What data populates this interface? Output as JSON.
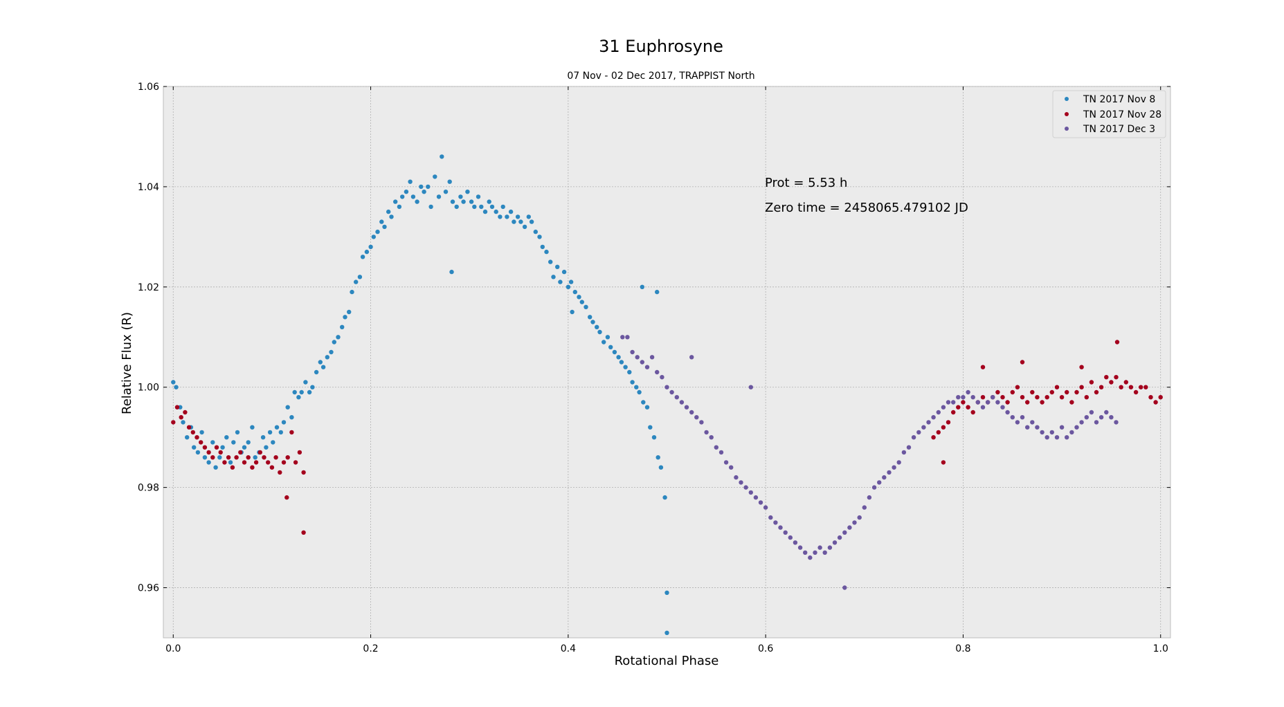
{
  "chart_data": {
    "type": "scatter",
    "title": "31 Euphrosyne",
    "subtitle": "07 Nov - 02 Dec 2017, TRAPPIST North",
    "xlabel": "Rotational Phase",
    "ylabel": "Relative Flux (R)",
    "xlim": [
      -0.01,
      1.01
    ],
    "ylim": [
      0.95,
      1.06
    ],
    "x_ticks": [
      "0.0",
      "0.2",
      "0.4",
      "0.6",
      "0.8",
      "1.0"
    ],
    "y_ticks": [
      "0.96",
      "0.98",
      "1.00",
      "1.02",
      "1.04",
      "1.06"
    ],
    "grid": true,
    "legend_position": "top-right",
    "annotations": [
      "Prot = 5.53 h",
      "Zero time = 2458065.479102 JD"
    ],
    "colors": {
      "background": "#ebebeb",
      "nov8": "#2c87bf",
      "nov28": "#a4001d",
      "dec3": "#6b579f"
    },
    "series": [
      {
        "name": "TN 2017 Nov 8",
        "color": "#2c87bf",
        "x": [
          0.0,
          0.003,
          0.007,
          0.01,
          0.014,
          0.018,
          0.021,
          0.025,
          0.029,
          0.032,
          0.036,
          0.04,
          0.043,
          0.047,
          0.05,
          0.054,
          0.058,
          0.061,
          0.065,
          0.069,
          0.072,
          0.076,
          0.08,
          0.083,
          0.087,
          0.091,
          0.094,
          0.098,
          0.101,
          0.105,
          0.109,
          0.112,
          0.116,
          0.12,
          0.123,
          0.127,
          0.13,
          0.134,
          0.138,
          0.141,
          0.145,
          0.149,
          0.152,
          0.156,
          0.16,
          0.163,
          0.167,
          0.171,
          0.174,
          0.178,
          0.181,
          0.185,
          0.189,
          0.192,
          0.196,
          0.2,
          0.203,
          0.207,
          0.211,
          0.214,
          0.218,
          0.221,
          0.225,
          0.229,
          0.232,
          0.236,
          0.24,
          0.243,
          0.247,
          0.251,
          0.254,
          0.258,
          0.261,
          0.265,
          0.269,
          0.272,
          0.276,
          0.28,
          0.283,
          0.287,
          0.291,
          0.294,
          0.298,
          0.302,
          0.305,
          0.309,
          0.312,
          0.316,
          0.32,
          0.323,
          0.327,
          0.331,
          0.334,
          0.338,
          0.342,
          0.345,
          0.349,
          0.352,
          0.356,
          0.36,
          0.363,
          0.367,
          0.371,
          0.374,
          0.378,
          0.382,
          0.385,
          0.389,
          0.392,
          0.396,
          0.4,
          0.403,
          0.407,
          0.411,
          0.414,
          0.418,
          0.422,
          0.425,
          0.429,
          0.432,
          0.436,
          0.44,
          0.443,
          0.447,
          0.451,
          0.454,
          0.458,
          0.462,
          0.465,
          0.469,
          0.472,
          0.476,
          0.48,
          0.483,
          0.487,
          0.491,
          0.494,
          0.498,
          0.5,
          0.5,
          0.282,
          0.475,
          0.49,
          0.404
        ],
        "y": [
          1.001,
          1.0,
          0.996,
          0.993,
          0.99,
          0.992,
          0.988,
          0.987,
          0.991,
          0.986,
          0.985,
          0.989,
          0.984,
          0.986,
          0.988,
          0.99,
          0.985,
          0.989,
          0.991,
          0.987,
          0.988,
          0.989,
          0.992,
          0.986,
          0.987,
          0.99,
          0.988,
          0.991,
          0.989,
          0.992,
          0.991,
          0.993,
          0.996,
          0.994,
          0.999,
          0.998,
          0.999,
          1.001,
          0.999,
          1.0,
          1.003,
          1.005,
          1.004,
          1.006,
          1.007,
          1.009,
          1.01,
          1.012,
          1.014,
          1.015,
          1.019,
          1.021,
          1.022,
          1.026,
          1.027,
          1.028,
          1.03,
          1.031,
          1.033,
          1.032,
          1.035,
          1.034,
          1.037,
          1.036,
          1.038,
          1.039,
          1.041,
          1.038,
          1.037,
          1.04,
          1.039,
          1.04,
          1.036,
          1.042,
          1.038,
          1.046,
          1.039,
          1.041,
          1.037,
          1.036,
          1.038,
          1.037,
          1.039,
          1.037,
          1.036,
          1.038,
          1.036,
          1.035,
          1.037,
          1.036,
          1.035,
          1.034,
          1.036,
          1.034,
          1.035,
          1.033,
          1.034,
          1.033,
          1.032,
          1.034,
          1.033,
          1.031,
          1.03,
          1.028,
          1.027,
          1.025,
          1.022,
          1.024,
          1.021,
          1.023,
          1.02,
          1.021,
          1.019,
          1.018,
          1.017,
          1.016,
          1.014,
          1.013,
          1.012,
          1.011,
          1.009,
          1.01,
          1.008,
          1.007,
          1.006,
          1.005,
          1.004,
          1.003,
          1.001,
          1.0,
          0.999,
          0.997,
          0.996,
          0.992,
          0.99,
          0.986,
          0.984,
          0.978,
          0.959,
          0.951,
          1.023,
          1.02,
          1.019,
          1.015
        ]
      },
      {
        "name": "TN 2017 Nov 28",
        "color": "#a4001d",
        "x": [
          0.0,
          0.004,
          0.008,
          0.012,
          0.016,
          0.02,
          0.024,
          0.028,
          0.032,
          0.036,
          0.04,
          0.044,
          0.048,
          0.052,
          0.056,
          0.06,
          0.064,
          0.068,
          0.072,
          0.076,
          0.08,
          0.084,
          0.088,
          0.092,
          0.096,
          0.1,
          0.104,
          0.108,
          0.112,
          0.116,
          0.12,
          0.124,
          0.128,
          0.132,
          0.115,
          0.132,
          0.77,
          0.775,
          0.78,
          0.785,
          0.79,
          0.795,
          0.8,
          0.805,
          0.81,
          0.815,
          0.82,
          0.825,
          0.83,
          0.835,
          0.84,
          0.845,
          0.85,
          0.855,
          0.86,
          0.865,
          0.87,
          0.875,
          0.88,
          0.885,
          0.89,
          0.895,
          0.9,
          0.905,
          0.91,
          0.915,
          0.92,
          0.925,
          0.93,
          0.935,
          0.94,
          0.945,
          0.95,
          0.955,
          0.96,
          0.965,
          0.97,
          0.975,
          0.98,
          0.985,
          0.99,
          0.995,
          1.0,
          0.956,
          0.82,
          0.86,
          0.92,
          0.78
        ],
        "y": [
          0.993,
          0.996,
          0.994,
          0.995,
          0.992,
          0.991,
          0.99,
          0.989,
          0.988,
          0.987,
          0.986,
          0.988,
          0.987,
          0.985,
          0.986,
          0.984,
          0.986,
          0.987,
          0.985,
          0.986,
          0.984,
          0.985,
          0.987,
          0.986,
          0.985,
          0.984,
          0.986,
          0.983,
          0.985,
          0.986,
          0.991,
          0.985,
          0.987,
          0.983,
          0.978,
          0.971,
          0.99,
          0.991,
          0.992,
          0.993,
          0.995,
          0.996,
          0.997,
          0.996,
          0.995,
          0.997,
          0.998,
          0.997,
          0.998,
          0.999,
          0.998,
          0.997,
          0.999,
          1.0,
          0.998,
          0.997,
          0.999,
          0.998,
          0.997,
          0.998,
          0.999,
          1.0,
          0.998,
          0.999,
          0.997,
          0.999,
          1.0,
          0.998,
          1.001,
          0.999,
          1.0,
          1.002,
          1.001,
          1.002,
          1.0,
          1.001,
          1.0,
          0.999,
          1.0,
          1.0,
          0.998,
          0.997,
          0.998,
          1.009,
          1.004,
          1.005,
          1.004,
          0.985
        ]
      },
      {
        "name": "TN 2017 Dec 3",
        "color": "#6b579f",
        "x": [
          0.455,
          0.46,
          0.465,
          0.47,
          0.475,
          0.48,
          0.485,
          0.49,
          0.495,
          0.5,
          0.505,
          0.51,
          0.515,
          0.52,
          0.525,
          0.53,
          0.535,
          0.54,
          0.545,
          0.55,
          0.555,
          0.56,
          0.565,
          0.57,
          0.575,
          0.58,
          0.585,
          0.59,
          0.595,
          0.6,
          0.605,
          0.61,
          0.615,
          0.62,
          0.625,
          0.63,
          0.635,
          0.64,
          0.645,
          0.65,
          0.655,
          0.66,
          0.665,
          0.67,
          0.675,
          0.68,
          0.685,
          0.69,
          0.695,
          0.7,
          0.705,
          0.71,
          0.715,
          0.72,
          0.725,
          0.73,
          0.735,
          0.74,
          0.745,
          0.75,
          0.755,
          0.76,
          0.765,
          0.77,
          0.775,
          0.78,
          0.785,
          0.79,
          0.795,
          0.8,
          0.805,
          0.81,
          0.815,
          0.82,
          0.825,
          0.83,
          0.835,
          0.84,
          0.845,
          0.85,
          0.855,
          0.86,
          0.865,
          0.87,
          0.875,
          0.88,
          0.885,
          0.89,
          0.895,
          0.9,
          0.905,
          0.91,
          0.915,
          0.92,
          0.925,
          0.93,
          0.935,
          0.94,
          0.945,
          0.95,
          0.955,
          0.525,
          0.585,
          0.68
        ],
        "y": [
          1.01,
          1.01,
          1.007,
          1.006,
          1.005,
          1.004,
          1.006,
          1.003,
          1.002,
          1.0,
          0.999,
          0.998,
          0.997,
          0.996,
          0.995,
          0.994,
          0.993,
          0.991,
          0.99,
          0.988,
          0.987,
          0.985,
          0.984,
          0.982,
          0.981,
          0.98,
          0.979,
          0.978,
          0.977,
          0.976,
          0.974,
          0.973,
          0.972,
          0.971,
          0.97,
          0.969,
          0.968,
          0.967,
          0.966,
          0.967,
          0.968,
          0.967,
          0.968,
          0.969,
          0.97,
          0.971,
          0.972,
          0.973,
          0.974,
          0.976,
          0.978,
          0.98,
          0.981,
          0.982,
          0.983,
          0.984,
          0.985,
          0.987,
          0.988,
          0.99,
          0.991,
          0.992,
          0.993,
          0.994,
          0.995,
          0.996,
          0.997,
          0.997,
          0.998,
          0.998,
          0.999,
          0.998,
          0.997,
          0.996,
          0.997,
          0.998,
          0.997,
          0.996,
          0.995,
          0.994,
          0.993,
          0.994,
          0.992,
          0.993,
          0.992,
          0.991,
          0.99,
          0.991,
          0.99,
          0.992,
          0.99,
          0.991,
          0.992,
          0.993,
          0.994,
          0.995,
          0.993,
          0.994,
          0.995,
          0.994,
          0.993,
          1.006,
          1.0,
          0.96
        ]
      }
    ]
  }
}
